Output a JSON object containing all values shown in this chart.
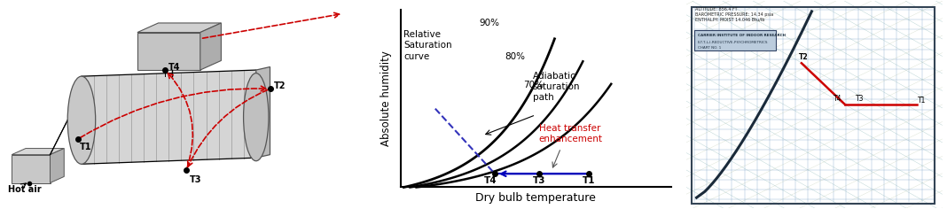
{
  "fig_width": 10.68,
  "fig_height": 2.36,
  "dpi": 100,
  "panel_ratios": [
    1.5,
    1.35,
    1.1
  ],
  "curve_color": "#000000",
  "dashed_color": "#3333bb",
  "arrow_color": "#cc0000",
  "blue_line_color": "#0000bb",
  "red_label_color": "#cc0000",
  "ylabel": "Absolute humidity",
  "xlabel": "Dry bulb temperature",
  "label_relative_sat": "Relative\nSaturation\ncurve",
  "label_adiabatic": "Adiabatic\nsaturation\npath",
  "label_heat_transfer": "Heat transfer\nenhancement",
  "label_hot_air": "Hot air",
  "psychro_bg": "#ccdde8",
  "grid_h_color": "#88aacc",
  "grid_v_color": "#88aacc",
  "grid_d1_color": "#77aaaa",
  "grid_d2_color": "#aabb99",
  "sat_curve_color": "#223344",
  "red_path_color": "#cc0000"
}
